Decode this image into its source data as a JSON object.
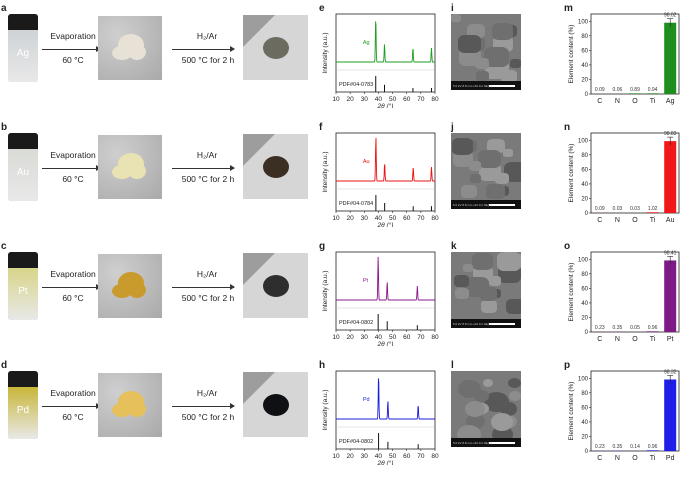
{
  "panel_letters": [
    "a",
    "b",
    "c",
    "d",
    "e",
    "f",
    "g",
    "h",
    "i",
    "j",
    "k",
    "l",
    "m",
    "n",
    "o",
    "p"
  ],
  "rows": [
    {
      "metal": "Ag",
      "vial_color": "#cfd3d6",
      "powder_color": "#e8e1d5",
      "product_color": "#6b6b60",
      "xrd_color": "#1e9e1e",
      "pdf": "PDF#04-0783",
      "xrd_peaks": [
        38.1,
        44.3,
        64.4,
        77.5
      ],
      "ref_heights": [
        1,
        0.45,
        0.25,
        0.25
      ],
      "eds": {
        "values": [
          0.09,
          0.06,
          0.89,
          0.94,
          98.02
        ],
        "labels": [
          "0.09",
          "0.06",
          "0.89",
          "0.94",
          "98.02"
        ],
        "color": "#1e8f1e"
      },
      "sem_info": "5.0 kV 8.8 mm x10.0 k SE(U)"
    },
    {
      "metal": "Au",
      "vial_color": "#d9dbd6",
      "powder_color": "#e9e3b4",
      "product_color": "#3a2f22",
      "xrd_color": "#ee1111",
      "pdf": "PDF#04-0784",
      "xrd_peaks": [
        38.2,
        44.4,
        64.6,
        77.5
      ],
      "ref_heights": [
        1,
        0.5,
        0.3,
        0.3
      ],
      "eds": {
        "values": [
          0.09,
          0.03,
          0.03,
          1.02,
          98.83
        ],
        "labels": [
          "0.09",
          "0.03",
          "0.03",
          "1.02",
          "98.83"
        ],
        "color": "#f01818"
      },
      "sem_info": "5.0 kV 8.8 mm x10.0 k SE(U)"
    },
    {
      "metal": "Pt",
      "vial_color": "#d8d58a",
      "powder_color": "#c99b2c",
      "product_color": "#2e2e2e",
      "xrd_color": "#8a188a",
      "pdf": "PDF#04-0802",
      "xrd_peaks": [
        39.8,
        46.2,
        67.5
      ],
      "ref_heights": [
        1,
        0.55,
        0.3
      ],
      "eds": {
        "values": [
          0.23,
          0.35,
          0.05,
          0.96,
          98.41
        ],
        "labels": [
          "0.23",
          "0.35",
          "0.05",
          "0.96",
          "98.41"
        ],
        "color": "#7d1a86"
      },
      "sem_info": "5.0 kV 8.8 mm x10.0 k SE(U)"
    },
    {
      "metal": "Pd",
      "vial_color": "#c9b63a",
      "powder_color": "#e6c05a",
      "product_color": "#0f1013",
      "xrd_color": "#1e1ed8",
      "pdf": "PDF#04-0802",
      "xrd_peaks": [
        40.1,
        46.7,
        68.1
      ],
      "ref_heights": [
        1,
        0.45,
        0.3
      ],
      "eds": {
        "values": [
          0.23,
          0.35,
          0.14,
          0.96,
          98.32
        ],
        "labels": [
          "0.23",
          "0.35",
          "0.14",
          "0.96",
          "98.32"
        ],
        "color": "#1e1ee8"
      },
      "sem_info": "5.0 kV 8.8 mm x10.0 k SE(U)"
    }
  ],
  "evaporation_label": "Evaporation",
  "evaporation_temp": "60 °C",
  "h2_label": "H₂/Ar",
  "h2_conditions": "500 °C for 2 h",
  "xrd_ylabel": "Intensity (a.u.)",
  "xrd_xlabel": "2θ (°)",
  "xrd_xticks": [
    "10",
    "20",
    "30",
    "40",
    "50",
    "60",
    "70",
    "80"
  ],
  "eds_ylabel": "Element content (%)",
  "eds_yticks": [
    "0",
    "20",
    "40",
    "60",
    "80",
    "100"
  ],
  "eds_elements": [
    "C",
    "N",
    "O",
    "Ti"
  ],
  "chart_data": [
    {
      "type": "line",
      "title": "e",
      "series": [
        {
          "name": "Ag",
          "peaks": [
            38.1,
            44.3,
            64.4,
            77.5
          ]
        }
      ],
      "xlabel": "2θ (°)",
      "ylabel": "Intensity (a.u.)",
      "xlim": [
        10,
        80
      ],
      "reference": "PDF#04-0783"
    },
    {
      "type": "line",
      "title": "f",
      "series": [
        {
          "name": "Au",
          "peaks": [
            38.2,
            44.4,
            64.6,
            77.5
          ]
        }
      ],
      "xlabel": "2θ (°)",
      "ylabel": "Intensity (a.u.)",
      "xlim": [
        10,
        80
      ],
      "reference": "PDF#04-0784"
    },
    {
      "type": "line",
      "title": "g",
      "series": [
        {
          "name": "Pt",
          "peaks": [
            39.8,
            46.2,
            67.5
          ]
        }
      ],
      "xlabel": "2θ (°)",
      "ylabel": "Intensity (a.u.)",
      "xlim": [
        10,
        80
      ],
      "reference": "PDF#04-0802"
    },
    {
      "type": "line",
      "title": "h",
      "series": [
        {
          "name": "Pd",
          "peaks": [
            40.1,
            46.7,
            68.1
          ]
        }
      ],
      "xlabel": "2θ (°)",
      "ylabel": "Intensity (a.u.)",
      "xlim": [
        10,
        80
      ],
      "reference": "PDF#04-0802"
    },
    {
      "type": "bar",
      "title": "m",
      "categories": [
        "C",
        "N",
        "O",
        "Ti",
        "Ag"
      ],
      "values": [
        0.09,
        0.06,
        0.89,
        0.94,
        98.02
      ],
      "ylabel": "Element content (%)",
      "ylim": [
        0,
        110
      ]
    },
    {
      "type": "bar",
      "title": "n",
      "categories": [
        "C",
        "N",
        "O",
        "Ti",
        "Au"
      ],
      "values": [
        0.09,
        0.03,
        0.03,
        1.02,
        98.83
      ],
      "ylabel": "Element content (%)",
      "ylim": [
        0,
        110
      ]
    },
    {
      "type": "bar",
      "title": "o",
      "categories": [
        "C",
        "N",
        "O",
        "Ti",
        "Pt"
      ],
      "values": [
        0.23,
        0.35,
        0.05,
        0.96,
        98.41
      ],
      "ylabel": "Element content (%)",
      "ylim": [
        0,
        110
      ]
    },
    {
      "type": "bar",
      "title": "p",
      "categories": [
        "C",
        "N",
        "O",
        "Ti",
        "Pd"
      ],
      "values": [
        0.23,
        0.35,
        0.14,
        0.96,
        98.32
      ],
      "ylabel": "Element content (%)",
      "ylim": [
        0,
        110
      ]
    }
  ]
}
